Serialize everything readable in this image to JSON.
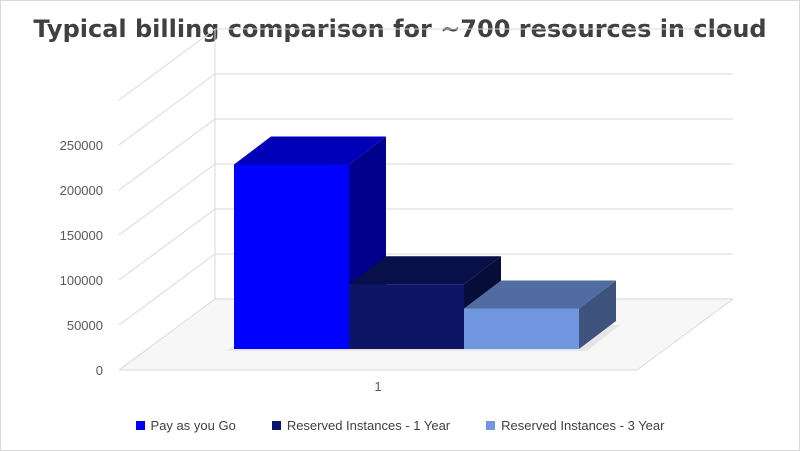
{
  "chart_data": {
    "type": "bar",
    "title": "Typical billing comparison for ~700 resources in cloud",
    "categories": [
      "1"
    ],
    "series": [
      {
        "name": "Pay as you Go",
        "values": [
          205000
        ],
        "color": "#0000ff"
      },
      {
        "name": "Reserved Instances - 1 Year",
        "values": [
          72000
        ],
        "color": "#0d1566"
      },
      {
        "name": "Reserved Instances - 3 Year",
        "values": [
          45000
        ],
        "color": "#7196e0"
      }
    ],
    "ylim": [
      0,
      250000
    ],
    "yticks": [
      "0",
      "50000",
      "100000",
      "150000",
      "200000",
      "250000"
    ],
    "grid": true,
    "legend": "bottom",
    "style": "3d-column"
  }
}
